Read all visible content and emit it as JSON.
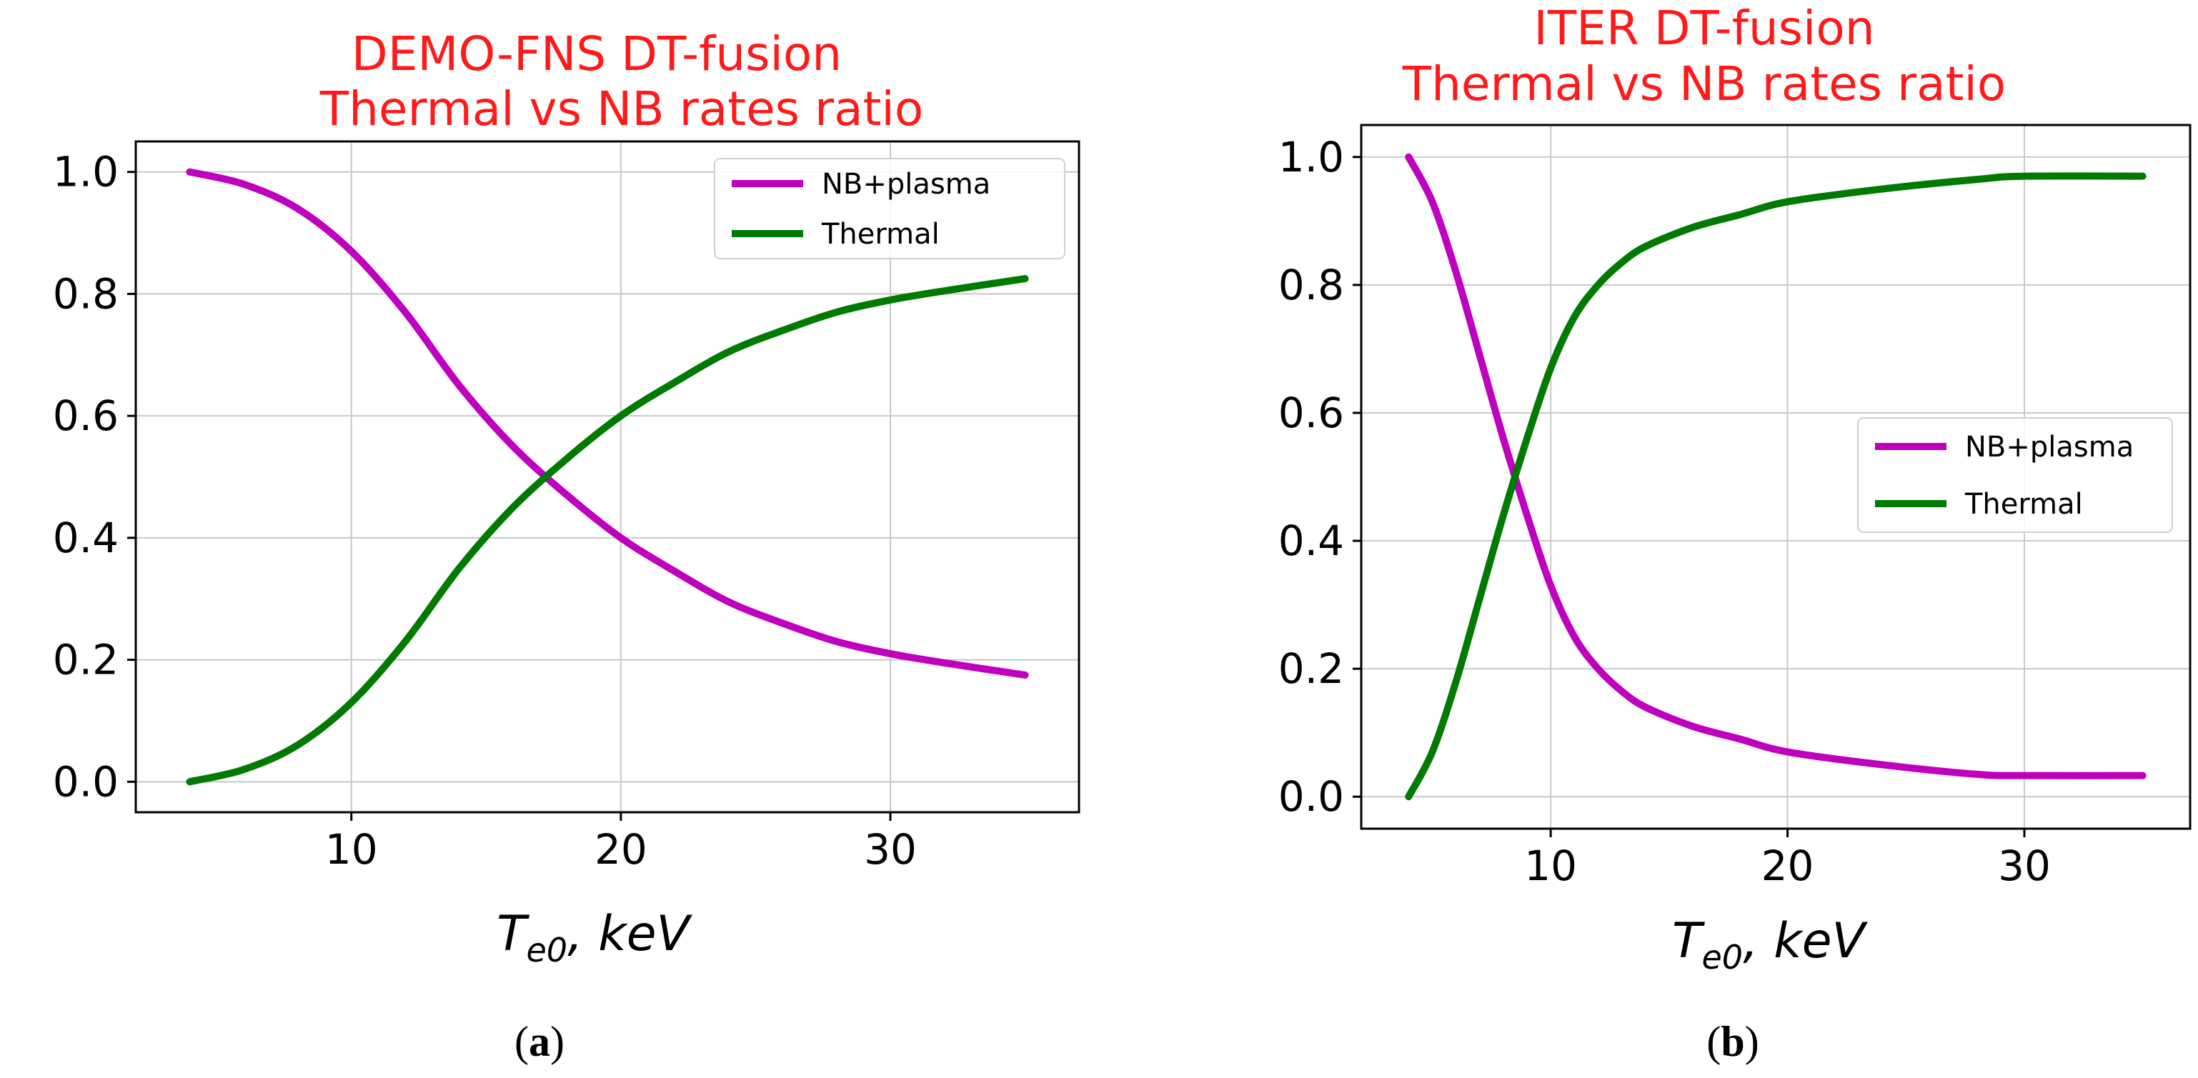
{
  "colors": {
    "title": "#ff1a1a",
    "nb_plasma": "#bf00bf",
    "thermal": "#007a00",
    "grid": "#c8c8c8",
    "axis": "#000000",
    "legend_border": "#d0d0d0"
  },
  "chart_data": [
    {
      "type": "line",
      "panel_label": "a",
      "title_line1": "DEMO-FNS DT-fusion",
      "title_line2": "Thermal vs NB rates ratio",
      "xlabel_main": "T",
      "xlabel_sub": "e0",
      "xlabel_rest": ", keV",
      "ylabel": "",
      "xlim": [
        2,
        37
      ],
      "ylim": [
        -0.05,
        1.05
      ],
      "xticks": [
        10,
        20,
        30
      ],
      "yticks": [
        0.0,
        0.2,
        0.4,
        0.6,
        0.8,
        1.0
      ],
      "ytick_labels": [
        "0.0",
        "0.2",
        "0.4",
        "0.6",
        "0.8",
        "1.0"
      ],
      "xtick_labels": [
        "10",
        "20",
        "30"
      ],
      "grid": true,
      "legend_position": "top-right",
      "series": [
        {
          "name": "NB+plasma",
          "color_key": "nb_plasma",
          "x": [
            4,
            6,
            8,
            10,
            12,
            14,
            16,
            18,
            20,
            22,
            24,
            26,
            28,
            30,
            32,
            35
          ],
          "y": [
            1.0,
            0.98,
            0.94,
            0.87,
            0.77,
            0.65,
            0.55,
            0.47,
            0.4,
            0.345,
            0.295,
            0.26,
            0.23,
            0.21,
            0.195,
            0.175
          ]
        },
        {
          "name": "Thermal",
          "color_key": "thermal",
          "x": [
            4,
            6,
            8,
            10,
            12,
            14,
            16,
            18,
            20,
            22,
            24,
            26,
            28,
            30,
            32,
            35
          ],
          "y": [
            0.0,
            0.02,
            0.06,
            0.13,
            0.23,
            0.35,
            0.45,
            0.53,
            0.6,
            0.655,
            0.705,
            0.74,
            0.77,
            0.79,
            0.805,
            0.825
          ]
        }
      ]
    },
    {
      "type": "line",
      "panel_label": "b",
      "title_line1": "ITER DT-fusion",
      "title_line2": "Thermal vs NB rates ratio",
      "xlabel_main": "T",
      "xlabel_sub": "e0",
      "xlabel_rest": ", keV",
      "ylabel": "",
      "xlim": [
        2,
        37
      ],
      "ylim": [
        -0.05,
        1.05
      ],
      "xticks": [
        10,
        20,
        30
      ],
      "yticks": [
        0.0,
        0.2,
        0.4,
        0.6,
        0.8,
        1.0
      ],
      "ytick_labels": [
        "0.0",
        "0.2",
        "0.4",
        "0.6",
        "0.8",
        "1.0"
      ],
      "xtick_labels": [
        "10",
        "20",
        "30"
      ],
      "grid": true,
      "legend_position": "center-right",
      "series": [
        {
          "name": "NB+plasma",
          "color_key": "nb_plasma",
          "x": [
            4,
            5,
            6,
            7,
            8,
            9,
            10,
            11,
            12,
            13,
            14,
            16,
            18,
            20,
            24,
            28,
            30,
            35
          ],
          "y": [
            1.0,
            0.93,
            0.82,
            0.69,
            0.56,
            0.44,
            0.33,
            0.25,
            0.2,
            0.165,
            0.14,
            0.11,
            0.09,
            0.07,
            0.05,
            0.035,
            0.033,
            0.033
          ]
        },
        {
          "name": "Thermal",
          "color_key": "thermal",
          "x": [
            4,
            5,
            6,
            7,
            8,
            9,
            10,
            11,
            12,
            13,
            14,
            16,
            18,
            20,
            24,
            28,
            30,
            35
          ],
          "y": [
            0.0,
            0.07,
            0.18,
            0.31,
            0.44,
            0.56,
            0.67,
            0.75,
            0.8,
            0.835,
            0.86,
            0.89,
            0.91,
            0.93,
            0.95,
            0.965,
            0.97,
            0.97
          ]
        }
      ]
    }
  ]
}
